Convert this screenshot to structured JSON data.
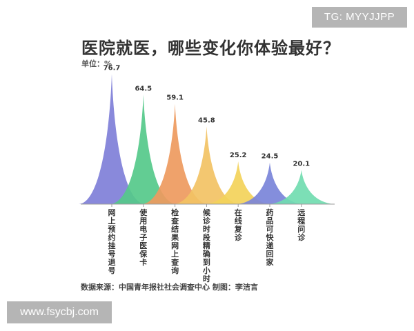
{
  "watermark_top": "TG: MYYJJPP",
  "watermark_bottom": "www.fsycbj.com",
  "chart_data": {
    "type": "area",
    "title": "医院就医，哪些变化你体验最好？",
    "unit_label": "单位：%",
    "categories": [
      "网上预约挂号退号",
      "使用电子医保卡",
      "检查结果网上查询",
      "候诊时段精确到小时",
      "在线复诊",
      "药品可快递回家",
      "远程问诊"
    ],
    "values": [
      76.7,
      64.5,
      59.1,
      45.8,
      25.2,
      24.5,
      20.1
    ],
    "value_labels": [
      "76.7",
      "64.5",
      "59.1",
      "45.8",
      "25.2",
      "24.5",
      "20.1"
    ],
    "colors": [
      "#7f7fd8",
      "#55c98a",
      "#ee9a5e",
      "#f2c264",
      "#f3d35a",
      "#7a84d9",
      "#71dcb0"
    ],
    "ylim": [
      0,
      80
    ],
    "grid": false,
    "legend": "none",
    "source": "数据来源：中国青年报社社会调查中心 制图：李洁言"
  }
}
